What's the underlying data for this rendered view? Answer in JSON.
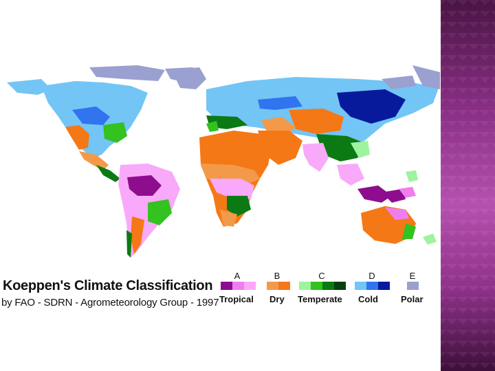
{
  "title": "Koeppen's Climate Classification",
  "subtitle": "by FAO - SDRN - Agrometeorology Group - 1997",
  "legend": {
    "groups": [
      {
        "letter": "A",
        "name": "Tropical",
        "colors": [
          "#8e0d8e",
          "#f07df0",
          "#f9a9f9"
        ]
      },
      {
        "letter": "B",
        "name": "Dry",
        "colors": [
          "#f39a4a",
          "#f57817"
        ]
      },
      {
        "letter": "C",
        "name": "Temperate",
        "colors": [
          "#9ef39e",
          "#33c21f",
          "#0b7a14",
          "#054012"
        ]
      },
      {
        "letter": "D",
        "name": "Cold",
        "colors": [
          "#73c5f5",
          "#3273f0",
          "#071a9c"
        ]
      },
      {
        "letter": "E",
        "name": "Polar",
        "colors": [
          "#9aa0cf"
        ]
      }
    ]
  },
  "colors": {
    "side_band": "#a03c9c",
    "background": "#ffffff"
  }
}
